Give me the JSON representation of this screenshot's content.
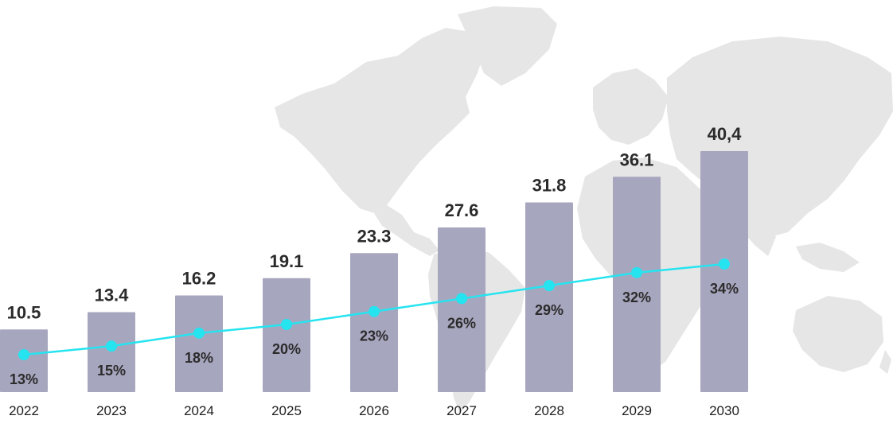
{
  "colors": {
    "bar": "#a7a6bf",
    "line": "#25e4f0",
    "map": "#e6e6e6",
    "text": "#2b2b2b"
  },
  "chart_data": {
    "type": "bar",
    "categories": [
      "2022",
      "2023",
      "2024",
      "2025",
      "2026",
      "2027",
      "2028",
      "2029",
      "2030"
    ],
    "values": [
      10.5,
      13.4,
      16.2,
      19.1,
      23.3,
      27.6,
      31.8,
      36.1,
      40.4
    ],
    "value_labels": [
      "10.5",
      "13.4",
      "16.2",
      "19.1",
      "23.3",
      "27.6",
      "31.8",
      "36.1",
      "40,4"
    ],
    "series": [
      {
        "type": "line",
        "values": [
          13,
          15,
          18,
          20,
          23,
          26,
          29,
          32,
          34
        ],
        "labels": [
          "13%",
          "15%",
          "18%",
          "20%",
          "23%",
          "26%",
          "29%",
          "32%",
          "34%"
        ]
      }
    ],
    "title": "",
    "xlabel": "",
    "ylabel": "",
    "grid": false,
    "legend": "none",
    "background_icon": "world-map"
  }
}
